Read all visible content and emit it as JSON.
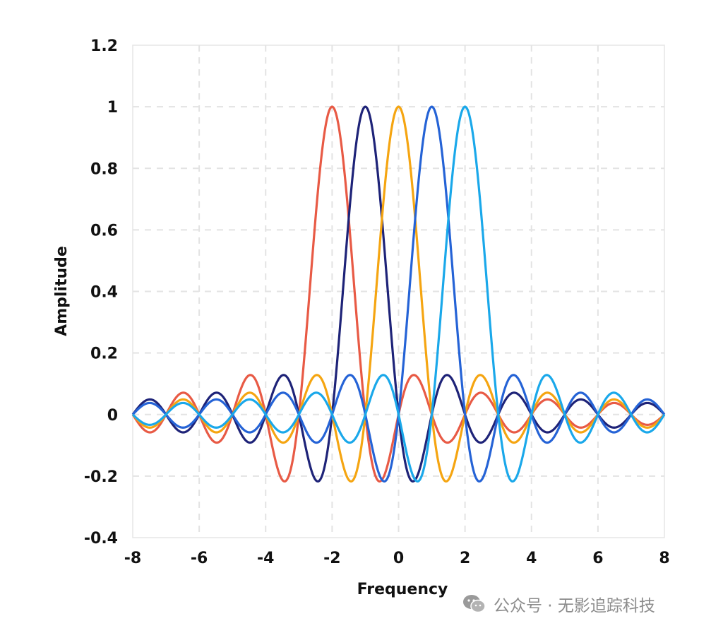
{
  "chart_data": {
    "type": "line",
    "xlabel": "Frequency",
    "ylabel": "Amplitude",
    "xlim": [
      -8,
      8
    ],
    "ylim": [
      -0.4,
      1.2
    ],
    "xticks": [
      "-8",
      "-6",
      "-4",
      "-2",
      "0",
      "2",
      "4",
      "6",
      "8"
    ],
    "yticks": [
      "-0.4",
      "-0.2",
      "0",
      "0.2",
      "0.4",
      "0.6",
      "0.8",
      "1",
      "1.2"
    ],
    "grid": true,
    "legend": "none",
    "curve": "sinc(x - center), normalized sinc sin(pi*(x-c))/(pi*(x-c)), peak 1, zeros at integer offsets",
    "series": [
      {
        "center": -2,
        "color": "#e85a45"
      },
      {
        "center": -1,
        "color": "#1e2378"
      },
      {
        "center": 0,
        "color": "#f5a511"
      },
      {
        "center": 1,
        "color": "#2563d6"
      },
      {
        "center": 2,
        "color": "#1aa8ea"
      }
    ],
    "peaks": [
      {
        "x": -2,
        "y": 1
      },
      {
        "x": -1,
        "y": 1
      },
      {
        "x": 0,
        "y": 1
      },
      {
        "x": 1,
        "y": 1
      },
      {
        "x": 2,
        "y": 1
      }
    ]
  },
  "watermark": {
    "text": "公众号 · 无影追踪科技",
    "icon": "wechat-icon"
  }
}
